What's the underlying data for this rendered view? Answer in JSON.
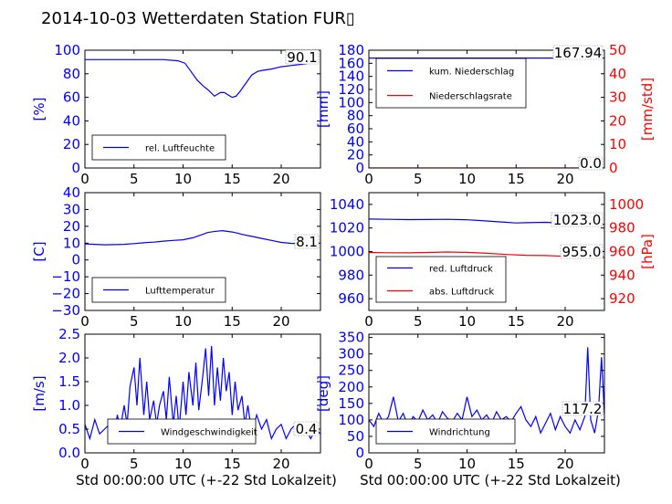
{
  "figure": {
    "title": "2014-10-03 Wetterdaten Station FUR▯",
    "colors": {
      "primary": "#0000ff",
      "secondary": "#ff0000"
    }
  },
  "chart_data": [
    {
      "id": "humidity",
      "type": "line",
      "xlim": [
        0,
        24
      ],
      "xticks": [
        "0",
        "5",
        "10",
        "15",
        "20"
      ],
      "ylim": [
        0,
        100
      ],
      "yticks": [
        "0",
        "20",
        "40",
        "60",
        "80",
        "100"
      ],
      "ylabel": "[%]",
      "xlabel": "",
      "legend_position": "lower-left",
      "annotation": "90.1",
      "series": [
        {
          "name": "rel. Luftfeuchte",
          "axis": "left",
          "color": "#0000ff",
          "x": [
            0,
            2,
            4,
            6,
            8,
            9.5,
            10.2,
            10.8,
            11.4,
            12,
            12.6,
            13.2,
            13.8,
            14.2,
            14.6,
            15,
            15.4,
            15.8,
            16.4,
            17,
            17.6,
            18.2,
            19,
            20,
            21,
            22,
            23,
            23.5
          ],
          "values": [
            92,
            92,
            92,
            92,
            92,
            91,
            89,
            82,
            75,
            70,
            66,
            61,
            64,
            64,
            62,
            60,
            61,
            65,
            72,
            79,
            82,
            83,
            84,
            86,
            87,
            88,
            89,
            90
          ]
        }
      ]
    },
    {
      "id": "precipitation",
      "type": "line",
      "xlim": [
        0,
        24
      ],
      "xticks": [
        "0",
        "5",
        "10",
        "15",
        "20"
      ],
      "ylim": [
        0,
        180
      ],
      "yticks": [
        "0",
        "20",
        "40",
        "60",
        "80",
        "100",
        "120",
        "140",
        "160",
        "180"
      ],
      "ylabel": "[mm]",
      "ylim_right": [
        0,
        50
      ],
      "yticks_right": [
        "0",
        "10",
        "20",
        "30",
        "40",
        "50"
      ],
      "ylabel_right": "[mm/std]",
      "xlabel": "",
      "legend_position": "upper-left",
      "annotations": [
        "167.94",
        "0.0"
      ],
      "series": [
        {
          "name": "kum. Niederschlag",
          "axis": "left",
          "color": "#0000ff",
          "x": [
            0,
            24
          ],
          "values": [
            167.94,
            167.94
          ]
        },
        {
          "name": "Niederschlagsrate",
          "axis": "right",
          "color": "#ff0000",
          "x": [
            0,
            24
          ],
          "values": [
            0,
            0
          ]
        }
      ]
    },
    {
      "id": "temperature",
      "type": "line",
      "xlim": [
        0,
        24
      ],
      "xticks": [
        "0",
        "5",
        "10",
        "15",
        "20"
      ],
      "ylim": [
        -30,
        40
      ],
      "yticks": [
        "−30",
        "−20",
        "−10",
        "0",
        "10",
        "20",
        "30",
        "40"
      ],
      "ylabel": "[C]",
      "xlabel": "",
      "legend_position": "lower-left",
      "annotation": "8.1",
      "series": [
        {
          "name": "Lufttemperatur",
          "axis": "left",
          "color": "#0000ff",
          "x": [
            0,
            1,
            2,
            3,
            4,
            5,
            6,
            7,
            8,
            9,
            10,
            11,
            12,
            12.5,
            13,
            13.5,
            14,
            14.5,
            15,
            15.5,
            16,
            17,
            18,
            19,
            20,
            21,
            22,
            23,
            23.5
          ],
          "values": [
            9.5,
            9.3,
            9.0,
            9.1,
            9.3,
            9.7,
            10.2,
            10.6,
            11.2,
            11.6,
            12.0,
            13.2,
            15.2,
            16.3,
            16.8,
            17.1,
            17.4,
            17.0,
            16.6,
            16.0,
            15.2,
            14.0,
            12.8,
            11.6,
            10.4,
            9.9,
            9.6,
            8.6,
            8.1
          ]
        }
      ]
    },
    {
      "id": "pressure",
      "type": "line",
      "xlim": [
        0,
        24
      ],
      "xticks": [
        "0",
        "5",
        "10",
        "15",
        "20"
      ],
      "ylim": [
        950,
        1050
      ],
      "yticks": [
        "960",
        "980",
        "1000",
        "1020",
        "1040"
      ],
      "ylabel": "",
      "ylim_right": [
        910,
        1010
      ],
      "yticks_right": [
        "920",
        "940",
        "960",
        "980",
        "1000"
      ],
      "ylabel_right": "[hPa]",
      "xlabel": "",
      "legend_position": "lower-left",
      "annotations": [
        "1023.0",
        "955.0"
      ],
      "series": [
        {
          "name": "red. Luftdruck",
          "axis": "left",
          "color": "#0000ff",
          "x": [
            0,
            2,
            4,
            6,
            8,
            10,
            12,
            14,
            15,
            16,
            18,
            20,
            22,
            24
          ],
          "values": [
            1027.6,
            1027.4,
            1027.1,
            1027.2,
            1027.4,
            1027.0,
            1026.0,
            1024.8,
            1024.3,
            1024.5,
            1024.8,
            1024.0,
            1023.3,
            1023.0
          ]
        },
        {
          "name": "abs. Luftdruck",
          "axis": "right",
          "color": "#ff0000",
          "x": [
            0,
            2,
            4,
            6,
            8,
            10,
            12,
            14,
            16,
            18,
            20,
            22,
            24
          ],
          "values": [
            959.2,
            959.0,
            958.9,
            959.2,
            959.6,
            959.3,
            958.5,
            957.5,
            956.8,
            956.6,
            956.0,
            955.3,
            955.0
          ]
        }
      ]
    },
    {
      "id": "windspeed",
      "type": "line",
      "xlim": [
        0,
        24
      ],
      "xticks": [
        "0",
        "5",
        "10",
        "15",
        "20"
      ],
      "ylim": [
        0,
        2.5
      ],
      "yticks": [
        "0.0",
        "0.5",
        "1.0",
        "1.5",
        "2.0",
        "2.5"
      ],
      "ylabel": "[m/s]",
      "xlabel": "Std 00:00:00 UTC (+-22 Std Lokalzeit)",
      "legend_position": "lower-center",
      "annotation": "0.4",
      "series": [
        {
          "name": "Windgeschwindigkeit",
          "axis": "left",
          "color": "#0000ff",
          "x": [
            0,
            0.5,
            1,
            1.5,
            2,
            2.5,
            3,
            3.3,
            3.6,
            4,
            4.3,
            4.6,
            5,
            5.3,
            5.6,
            6,
            6.3,
            6.6,
            7,
            7.3,
            7.6,
            8,
            8.3,
            8.6,
            9,
            9.3,
            9.6,
            10,
            10.3,
            10.6,
            11,
            11.3,
            11.6,
            12,
            12.3,
            12.6,
            12.9,
            13.2,
            13.5,
            13.8,
            14.1,
            14.4,
            14.7,
            15,
            15.3,
            15.6,
            16,
            16.3,
            16.6,
            17,
            17.5,
            18,
            18.5,
            19,
            19.5,
            20,
            20.5,
            21,
            21.5,
            22,
            22.5,
            23,
            23.5,
            24
          ],
          "values": [
            0.6,
            0.3,
            0.7,
            0.4,
            0.5,
            0.6,
            0.4,
            0.8,
            0.5,
            1.0,
            0.6,
            1.4,
            1.8,
            1.0,
            2.0,
            0.8,
            1.5,
            0.7,
            1.1,
            0.6,
            1.0,
            1.3,
            0.7,
            1.6,
            0.6,
            1.2,
            0.5,
            1.5,
            0.8,
            1.7,
            1.0,
            1.9,
            0.9,
            1.6,
            2.2,
            1.2,
            2.25,
            1.0,
            1.8,
            1.1,
            2.0,
            1.3,
            1.7,
            0.8,
            1.5,
            0.9,
            1.2,
            0.6,
            1.0,
            0.4,
            0.8,
            0.5,
            0.7,
            0.3,
            0.5,
            0.6,
            0.3,
            0.5,
            0.6,
            0.4,
            0.5,
            0.3,
            0.5,
            0.4
          ]
        }
      ]
    },
    {
      "id": "winddirection",
      "type": "line",
      "xlim": [
        0,
        24
      ],
      "xticks": [
        "0",
        "5",
        "10",
        "15",
        "20"
      ],
      "ylim": [
        0,
        360
      ],
      "yticks": [
        "0",
        "50",
        "100",
        "150",
        "200",
        "250",
        "300",
        "350"
      ],
      "ylabel": "[deg]",
      "xlabel": "Std 00:00:00 UTC (+-22 Std Lokalzeit)",
      "legend_position": "lower-left",
      "annotation": "117.2",
      "series": [
        {
          "name": "Windrichtung",
          "axis": "left",
          "color": "#0000ff",
          "x": [
            0,
            0.5,
            1,
            1.5,
            2,
            2.5,
            3,
            3.5,
            4,
            4.5,
            5,
            5.5,
            6,
            6.5,
            7,
            7.5,
            8,
            8.5,
            9,
            9.5,
            10,
            10.5,
            11,
            11.5,
            12,
            12.5,
            13,
            13.5,
            14,
            14.5,
            15,
            15.5,
            16,
            16.5,
            17,
            17.5,
            18,
            18.5,
            19,
            19.5,
            20,
            20.5,
            21,
            21.5,
            22,
            22.3,
            22.6,
            23,
            23.4,
            23.7,
            24
          ],
          "values": [
            100,
            80,
            120,
            90,
            110,
            170,
            95,
            120,
            80,
            110,
            95,
            130,
            100,
            115,
            90,
            125,
            105,
            95,
            120,
            100,
            170,
            110,
            130,
            100,
            115,
            90,
            125,
            100,
            110,
            95,
            120,
            140,
            100,
            80,
            110,
            60,
            90,
            120,
            70,
            110,
            80,
            60,
            100,
            70,
            110,
            320,
            100,
            60,
            130,
            290,
            117
          ]
        }
      ]
    }
  ]
}
